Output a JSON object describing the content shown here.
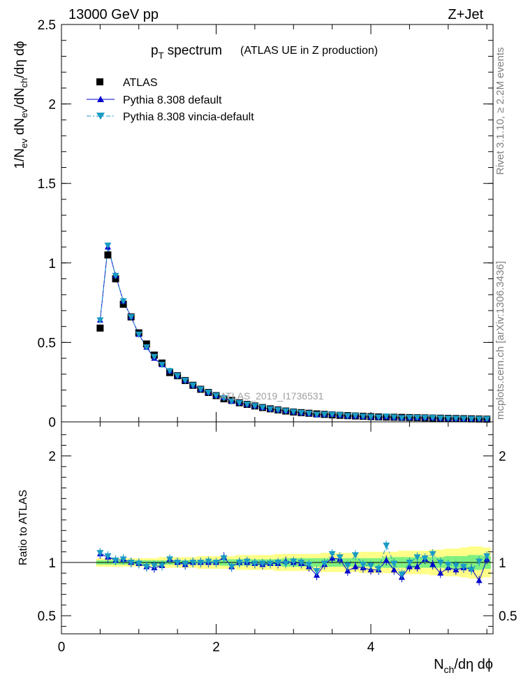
{
  "header": {
    "beam": "13000 GeV pp",
    "process": "Z+Jet",
    "title_main": "p",
    "title_sub": "T",
    "title_rest": " spectrum",
    "title_note": "(ATLAS UE in Z production)",
    "watermark": "ATLAS_2019_I1736531"
  },
  "side": {
    "rivet": "Rivet 3.1.10, ≥ 2.2M events",
    "mcplots": "mcplots.cern.ch [arXiv:1306.3436]"
  },
  "labels": {
    "y_main": "1/N_ev dN_ev/dN_ch/dη dϕ",
    "y_ratio": "Ratio to ATLAS",
    "x": "N_ch/dη dϕ"
  },
  "legend": {
    "data": "ATLAS",
    "mc1": "Pythia 8.308 default",
    "mc2": "Pythia 8.308 vincia-default"
  },
  "colors": {
    "data": "#000000",
    "mc1": "#0000cc",
    "mc2": "#1a9bc4",
    "band_inner": "#7ff07f",
    "band_outer": "#ffff88"
  },
  "chart_data": [
    {
      "type": "scatter",
      "panel": "main",
      "xlim": [
        0,
        5.58
      ],
      "ylim": [
        0,
        2.5
      ],
      "yticks": [
        0,
        0.5,
        1,
        1.5,
        2,
        2.5
      ],
      "ytick_labels": [
        "0",
        "0.5",
        "1",
        "1.5",
        "2",
        "2.5"
      ],
      "x": [
        0.5,
        0.6,
        0.7,
        0.8,
        0.9,
        1.0,
        1.1,
        1.2,
        1.3,
        1.4,
        1.5,
        1.6,
        1.7,
        1.8,
        1.9,
        2.0,
        2.1,
        2.2,
        2.3,
        2.4,
        2.5,
        2.6,
        2.7,
        2.8,
        2.9,
        3.0,
        3.1,
        3.2,
        3.3,
        3.4,
        3.5,
        3.6,
        3.7,
        3.8,
        3.9,
        4.0,
        4.1,
        4.2,
        4.3,
        4.4,
        4.5,
        4.6,
        4.7,
        4.8,
        4.9,
        5.0,
        5.1,
        5.2,
        5.3,
        5.4,
        5.5
      ],
      "series": [
        {
          "name": "ATLAS",
          "marker": "square",
          "values": [
            0.59,
            1.05,
            0.9,
            0.74,
            0.66,
            0.56,
            0.49,
            0.42,
            0.37,
            0.31,
            0.29,
            0.26,
            0.23,
            0.205,
            0.185,
            0.165,
            0.145,
            0.135,
            0.12,
            0.11,
            0.1,
            0.09,
            0.082,
            0.075,
            0.068,
            0.062,
            0.058,
            0.054,
            0.05,
            0.047,
            0.044,
            0.041,
            0.039,
            0.037,
            0.035,
            0.033,
            0.031,
            0.03,
            0.029,
            0.028,
            0.027,
            0.026,
            0.025,
            0.024,
            0.023,
            0.022,
            0.021,
            0.02,
            0.019,
            0.018,
            0.017
          ]
        },
        {
          "name": "Pythia 8.308 default",
          "marker": "triangle-up",
          "values": [
            0.64,
            1.1,
            0.92,
            0.76,
            0.66,
            0.55,
            0.47,
            0.4,
            0.36,
            0.32,
            0.29,
            0.26,
            0.23,
            0.205,
            0.185,
            0.165,
            0.153,
            0.13,
            0.12,
            0.11,
            0.1,
            0.09,
            0.081,
            0.074,
            0.069,
            0.062,
            0.057,
            0.052,
            0.044,
            0.046,
            0.046,
            0.042,
            0.036,
            0.036,
            0.033,
            0.031,
            0.029,
            0.031,
            0.027,
            0.024,
            0.026,
            0.025,
            0.026,
            0.024,
            0.021,
            0.021,
            0.02,
            0.019,
            0.018,
            0.015,
            0.017
          ]
        },
        {
          "name": "Pythia 8.308 vincia-default",
          "marker": "triangle-down",
          "values": [
            0.64,
            1.11,
            0.92,
            0.76,
            0.66,
            0.55,
            0.47,
            0.41,
            0.36,
            0.32,
            0.29,
            0.26,
            0.23,
            0.205,
            0.185,
            0.165,
            0.15,
            0.13,
            0.12,
            0.11,
            0.1,
            0.09,
            0.081,
            0.075,
            0.068,
            0.063,
            0.058,
            0.053,
            0.046,
            0.047,
            0.046,
            0.043,
            0.038,
            0.039,
            0.034,
            0.032,
            0.029,
            0.035,
            0.029,
            0.025,
            0.027,
            0.027,
            0.026,
            0.026,
            0.023,
            0.022,
            0.021,
            0.02,
            0.018,
            0.018,
            0.018
          ]
        }
      ]
    },
    {
      "type": "scatter",
      "panel": "ratio",
      "xlim": [
        0,
        5.58
      ],
      "ylim": [
        0.33,
        2.32
      ],
      "yticks": [
        0.5,
        1,
        2
      ],
      "ytick_labels": [
        "0.5",
        "1",
        "2"
      ],
      "xticks": [
        0,
        2,
        4
      ],
      "xtick_labels": [
        "0",
        "2",
        "4"
      ],
      "x": [
        0.5,
        0.6,
        0.7,
        0.8,
        0.9,
        1.0,
        1.1,
        1.2,
        1.3,
        1.4,
        1.5,
        1.6,
        1.7,
        1.8,
        1.9,
        2.0,
        2.1,
        2.2,
        2.3,
        2.4,
        2.5,
        2.6,
        2.7,
        2.8,
        2.9,
        3.0,
        3.1,
        3.2,
        3.3,
        3.4,
        3.5,
        3.6,
        3.7,
        3.8,
        3.9,
        4.0,
        4.1,
        4.2,
        4.3,
        4.4,
        4.5,
        4.6,
        4.7,
        4.8,
        4.9,
        5.0,
        5.1,
        5.2,
        5.3,
        5.4,
        5.5
      ],
      "band_inner": [
        0.02,
        0.02,
        0.02,
        0.02,
        0.02,
        0.02,
        0.02,
        0.02,
        0.02,
        0.02,
        0.02,
        0.02,
        0.02,
        0.02,
        0.02,
        0.02,
        0.03,
        0.03,
        0.03,
        0.03,
        0.03,
        0.03,
        0.03,
        0.03,
        0.04,
        0.04,
        0.04,
        0.04,
        0.04,
        0.04,
        0.04,
        0.04,
        0.04,
        0.04,
        0.04,
        0.04,
        0.04,
        0.05,
        0.05,
        0.05,
        0.05,
        0.05,
        0.05,
        0.05,
        0.05,
        0.06,
        0.06,
        0.06,
        0.07,
        0.07,
        0.06
      ],
      "band_outer": [
        0.04,
        0.04,
        0.04,
        0.04,
        0.04,
        0.04,
        0.04,
        0.04,
        0.05,
        0.05,
        0.05,
        0.05,
        0.05,
        0.06,
        0.06,
        0.06,
        0.06,
        0.06,
        0.07,
        0.07,
        0.07,
        0.07,
        0.07,
        0.08,
        0.08,
        0.08,
        0.08,
        0.08,
        0.08,
        0.09,
        0.09,
        0.09,
        0.09,
        0.09,
        0.1,
        0.1,
        0.1,
        0.1,
        0.1,
        0.11,
        0.11,
        0.11,
        0.11,
        0.12,
        0.12,
        0.13,
        0.13,
        0.14,
        0.15,
        0.15,
        0.14
      ],
      "series": [
        {
          "name": "Pythia 8.308 default",
          "marker": "triangle-up",
          "values": [
            1.08,
            1.05,
            1.02,
            1.03,
            1.0,
            0.99,
            0.96,
            0.95,
            0.97,
            1.03,
            1.0,
            0.98,
            1.0,
            1.0,
            1.0,
            1.0,
            1.05,
            0.96,
            1.0,
            1.0,
            0.99,
            0.98,
            0.99,
            0.99,
            1.01,
            1.0,
            0.99,
            0.96,
            0.88,
            0.98,
            1.04,
            1.03,
            0.92,
            0.96,
            0.95,
            0.93,
            0.93,
            1.02,
            0.93,
            0.86,
            0.96,
            0.96,
            1.03,
            0.98,
            0.9,
            0.95,
            0.93,
            0.95,
            0.94,
            0.83,
            1.03
          ]
        },
        {
          "name": "Pythia 8.308 vincia-default",
          "marker": "triangle-down",
          "values": [
            1.09,
            1.06,
            1.02,
            1.03,
            1.0,
            0.99,
            0.96,
            0.97,
            0.97,
            1.03,
            1.0,
            0.99,
            1.0,
            1.0,
            1.01,
            1.0,
            1.04,
            0.96,
            1.0,
            1.01,
            0.99,
            0.99,
            0.99,
            1.0,
            0.99,
            1.01,
            1.0,
            0.98,
            0.92,
            0.99,
            1.08,
            1.05,
            0.97,
            1.07,
            0.98,
            0.97,
            0.94,
            1.16,
            0.99,
            0.89,
            1.0,
            1.05,
            1.04,
            1.08,
            1.0,
            0.98,
            0.97,
            0.96,
            0.93,
            1.01,
            1.06
          ]
        }
      ]
    }
  ]
}
